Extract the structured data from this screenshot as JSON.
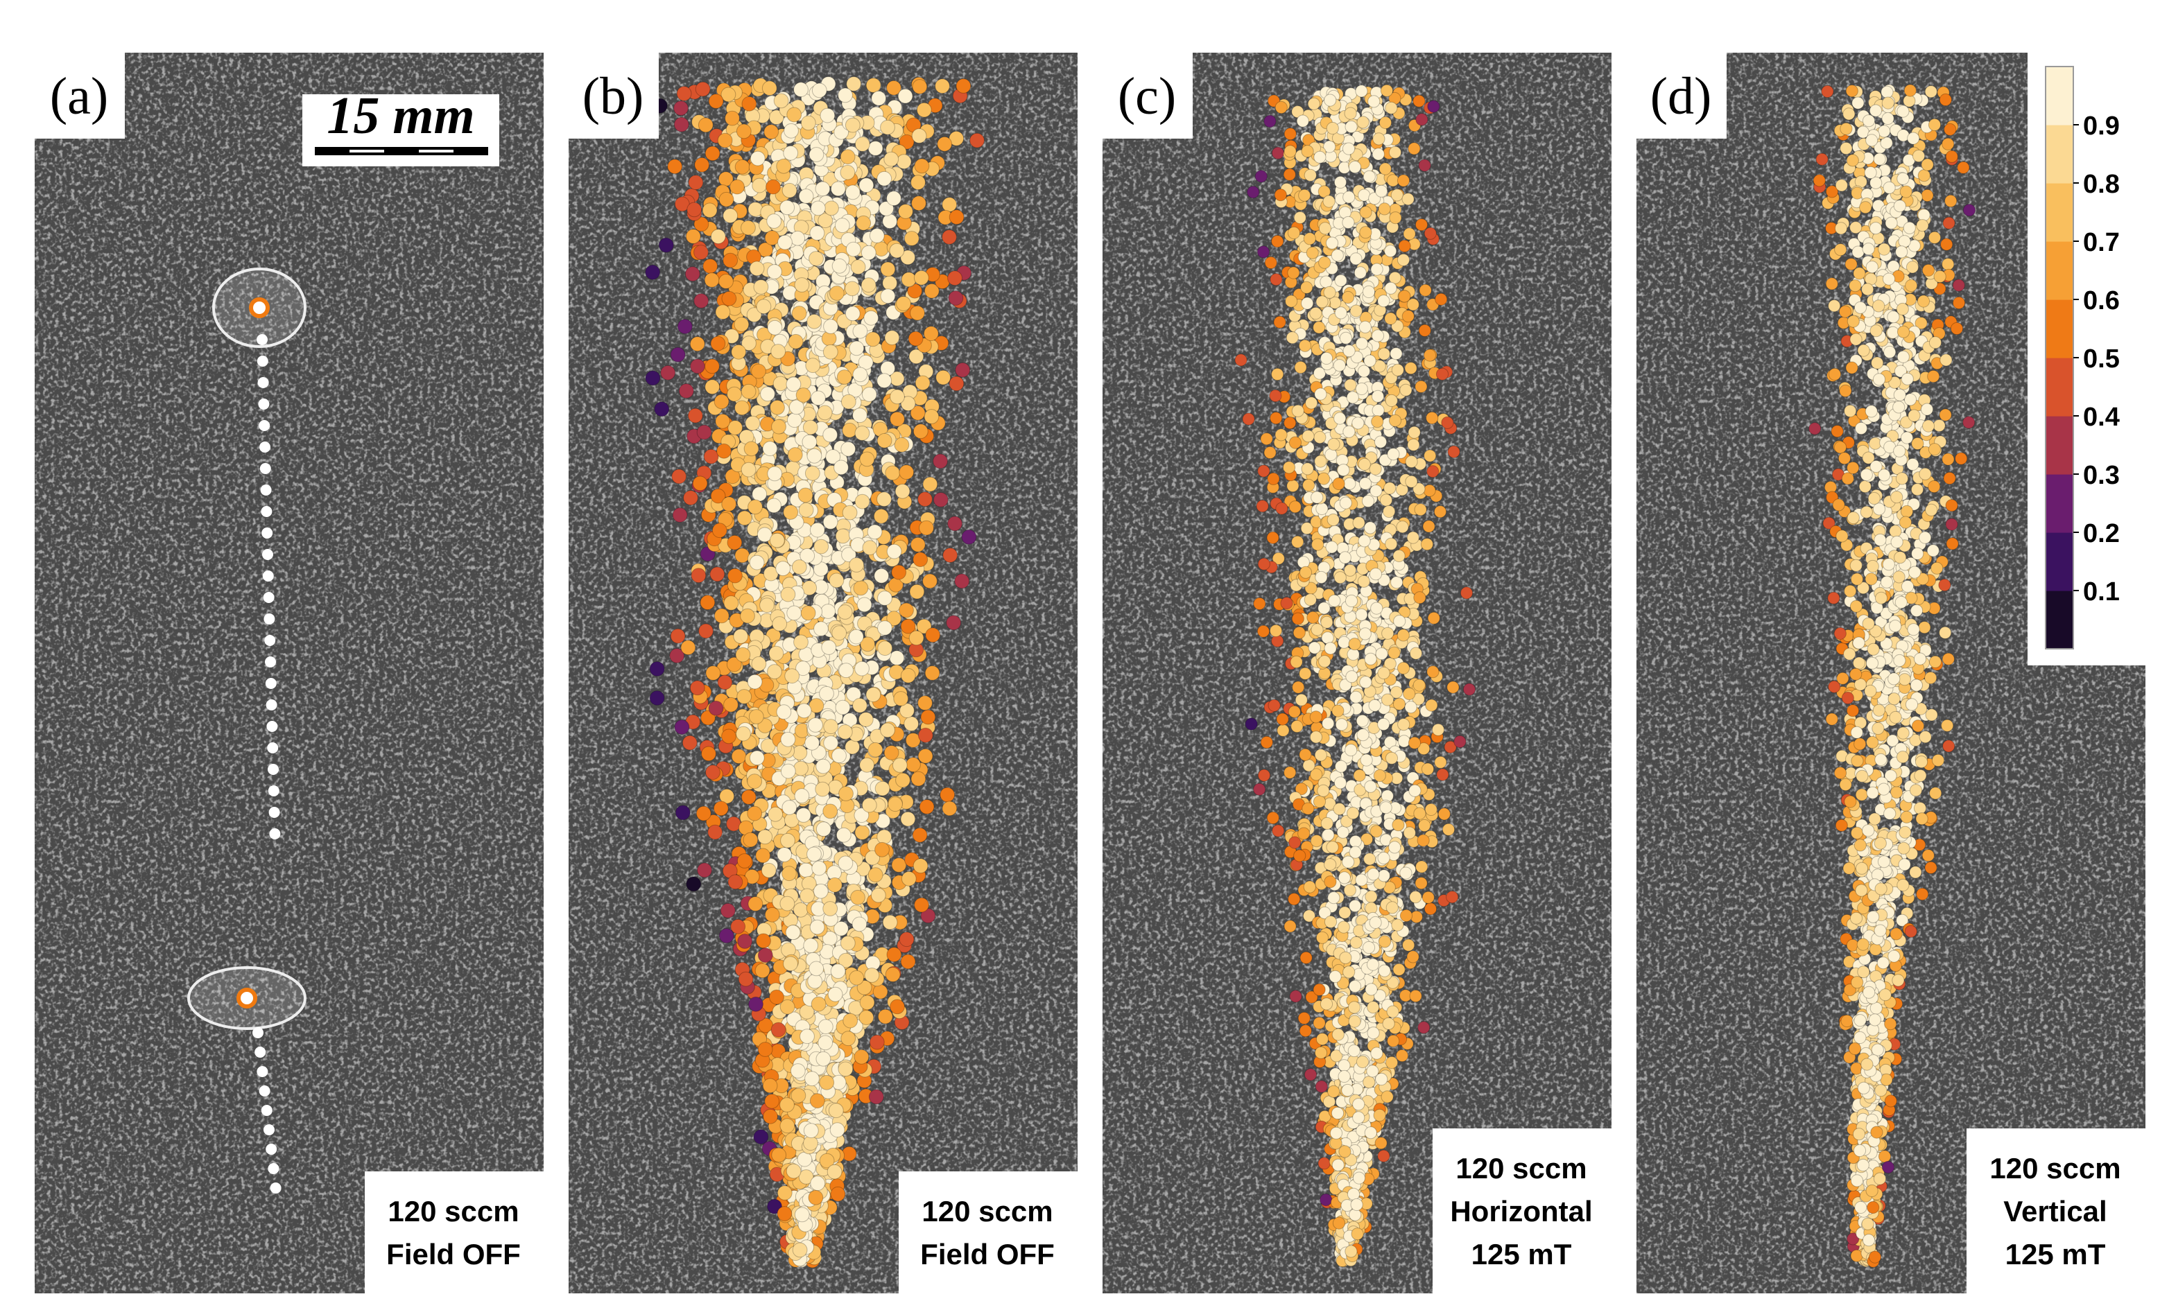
{
  "panels": [
    {
      "label": "(a)",
      "caption": [
        "120 sccm",
        "Field OFF"
      ]
    },
    {
      "label": "(b)",
      "caption": [
        "120 sccm",
        "Field OFF"
      ]
    },
    {
      "label": "(c)",
      "caption": [
        "120 sccm",
        "Horizontal",
        "125 mT"
      ]
    },
    {
      "label": "(d)",
      "caption": [
        "120 sccm",
        "Vertical",
        "125 mT"
      ]
    }
  ],
  "scale_bar": {
    "label": "15 mm"
  },
  "colorbar": {
    "lim": [
      0,
      1
    ],
    "ticks": [
      0.1,
      0.2,
      0.3,
      0.4,
      0.5,
      0.6,
      0.7,
      0.8,
      0.9
    ],
    "colors": [
      "#180a28",
      "#3b1260",
      "#6a1d6e",
      "#a83448",
      "#d9532c",
      "#ef7a16",
      "#f6a035",
      "#f9bf5e",
      "#fbd993",
      "#fdf1d2"
    ]
  }
}
